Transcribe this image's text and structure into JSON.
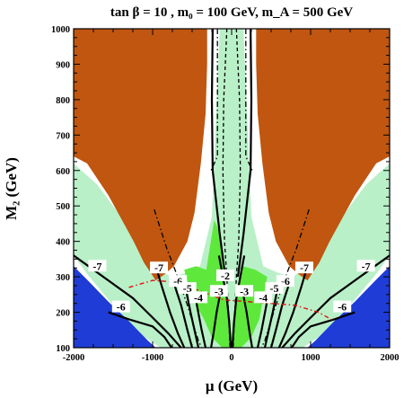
{
  "chart_data": {
    "type": "contour",
    "title": "tan β = 10 ,  m₀ = 100 GeV,  m_A = 500 GeV",
    "xlabel": "μ (GeV)",
    "ylabel": "M₂ (GeV)",
    "xlim": [
      -2000,
      2000
    ],
    "ylim": [
      100,
      1000
    ],
    "xticks": [
      -2000,
      -1000,
      0,
      1000,
      2000
    ],
    "yticks": [
      100,
      200,
      300,
      400,
      500,
      600,
      700,
      800,
      900,
      1000
    ],
    "colors": {
      "excluded_brown": "#c0560f",
      "excluded_blue": "#1f3cd6",
      "relic_light_green": "#b9f0c8",
      "relic_bright_green": "#5ee83c",
      "red_dotted": "#e01010"
    },
    "regions": [
      {
        "color": "brown",
        "polygon": [
          [
            -2000,
            1000
          ],
          [
            -310,
            1000
          ],
          [
            -310,
            900
          ],
          [
            -330,
            760
          ],
          [
            -390,
            620
          ],
          [
            -470,
            480
          ],
          [
            -560,
            400
          ],
          [
            -730,
            330
          ],
          [
            -860,
            305
          ],
          [
            -960,
            290
          ],
          [
            -1110,
            340
          ],
          [
            -1240,
            400
          ],
          [
            -1560,
            530
          ],
          [
            -1830,
            620
          ],
          [
            -2000,
            640
          ]
        ]
      },
      {
        "color": "brown",
        "polygon": [
          [
            2000,
            1000
          ],
          [
            310,
            1000
          ],
          [
            310,
            900
          ],
          [
            330,
            760
          ],
          [
            390,
            620
          ],
          [
            470,
            480
          ],
          [
            560,
            400
          ],
          [
            730,
            330
          ],
          [
            860,
            305
          ],
          [
            960,
            290
          ],
          [
            1110,
            340
          ],
          [
            1240,
            400
          ],
          [
            1560,
            530
          ],
          [
            1830,
            620
          ],
          [
            2000,
            640
          ]
        ]
      },
      {
        "color": "blue",
        "polygon": [
          [
            -2000,
            100
          ],
          [
            -2000,
            330
          ],
          [
            -1820,
            290
          ],
          [
            -1560,
            230
          ],
          [
            -1300,
            175
          ],
          [
            -1060,
            120
          ],
          [
            -960,
            100
          ]
        ]
      },
      {
        "color": "blue",
        "polygon": [
          [
            2000,
            100
          ],
          [
            2000,
            330
          ],
          [
            1820,
            290
          ],
          [
            1560,
            230
          ],
          [
            1300,
            175
          ],
          [
            1060,
            120
          ],
          [
            960,
            100
          ]
        ]
      }
    ],
    "contours": [
      {
        "label": "-7",
        "style": "solid",
        "points": [
          [
            -2000,
            360
          ],
          [
            -1750,
            320
          ],
          [
            -1500,
            280
          ],
          [
            -1250,
            240
          ],
          [
            -1000,
            185
          ],
          [
            -800,
            140
          ],
          [
            -640,
            100
          ]
        ],
        "label_at": [
          -1700,
          325
        ]
      },
      {
        "label": "-7",
        "style": "solid",
        "points": [
          [
            2000,
            360
          ],
          [
            1750,
            320
          ],
          [
            1500,
            280
          ],
          [
            1250,
            240
          ],
          [
            1000,
            185
          ],
          [
            800,
            140
          ],
          [
            640,
            100
          ]
        ],
        "label_at": [
          1700,
          325
        ]
      },
      {
        "label": "-7",
        "style": "solid",
        "points": [
          [
            -960,
            330
          ],
          [
            -880,
            270
          ],
          [
            -780,
            200
          ],
          [
            -680,
            140
          ],
          [
            -600,
            100
          ]
        ],
        "label_at": [
          -920,
          320
        ]
      },
      {
        "label": "-7",
        "style": "solid",
        "points": [
          [
            960,
            330
          ],
          [
            880,
            270
          ],
          [
            780,
            200
          ],
          [
            680,
            140
          ],
          [
            600,
            100
          ]
        ],
        "label_at": [
          920,
          320
        ]
      },
      {
        "label": "-6",
        "style": "solid",
        "points": [
          [
            -1560,
            200
          ],
          [
            -1300,
            180
          ],
          [
            -1000,
            160
          ],
          [
            -850,
            130
          ],
          [
            -760,
            100
          ]
        ],
        "label_at": [
          -1400,
          210
        ]
      },
      {
        "label": "-6",
        "style": "solid",
        "points": [
          [
            1560,
            200
          ],
          [
            1300,
            180
          ],
          [
            1000,
            160
          ],
          [
            850,
            130
          ],
          [
            760,
            100
          ]
        ],
        "label_at": [
          1400,
          210
        ]
      },
      {
        "label": "-6",
        "style": "solid",
        "points": [
          [
            -720,
            275
          ],
          [
            -640,
            220
          ],
          [
            -560,
            150
          ],
          [
            -500,
            100
          ]
        ],
        "label_at": [
          -680,
          282
        ]
      },
      {
        "label": "-6",
        "style": "solid",
        "points": [
          [
            720,
            275
          ],
          [
            640,
            220
          ],
          [
            560,
            150
          ],
          [
            500,
            100
          ]
        ],
        "label_at": [
          680,
          282
        ]
      },
      {
        "label": "-5",
        "style": "solid",
        "points": [
          [
            -580,
            265
          ],
          [
            -520,
            200
          ],
          [
            -460,
            140
          ],
          [
            -420,
            100
          ]
        ],
        "label_at": [
          -560,
          262
        ]
      },
      {
        "label": "-5",
        "style": "solid",
        "points": [
          [
            580,
            265
          ],
          [
            520,
            200
          ],
          [
            460,
            140
          ],
          [
            420,
            100
          ]
        ],
        "label_at": [
          540,
          262
        ]
      },
      {
        "label": "-4",
        "style": "solid",
        "points": [
          [
            -470,
            280
          ],
          [
            -440,
            220
          ],
          [
            -380,
            150
          ],
          [
            -330,
            100
          ]
        ],
        "label_at": [
          -420,
          236
        ]
      },
      {
        "label": "-4",
        "style": "solid",
        "points": [
          [
            470,
            280
          ],
          [
            440,
            220
          ],
          [
            380,
            150
          ],
          [
            330,
            100
          ]
        ],
        "label_at": [
          400,
          236
        ]
      },
      {
        "label": "-3",
        "style": "solid",
        "points": [
          [
            -130,
            270
          ],
          [
            -190,
            200
          ],
          [
            -230,
            140
          ],
          [
            -260,
            100
          ]
        ],
        "label_at": [
          -160,
          254
        ]
      },
      {
        "label": "-3",
        "style": "solid",
        "points": [
          [
            130,
            270
          ],
          [
            190,
            200
          ],
          [
            230,
            140
          ],
          [
            260,
            100
          ]
        ],
        "label_at": [
          160,
          254
        ]
      },
      {
        "label": "-2",
        "style": "solid",
        "points": [
          [
            -160,
            360
          ],
          [
            -110,
            300
          ],
          [
            -60,
            240
          ],
          [
            -30,
            170
          ],
          [
            -10,
            100
          ]
        ],
        "label_at": [
          -80,
          298
        ]
      },
      {
        "label": "",
        "style": "solid",
        "points": [
          [
            160,
            360
          ],
          [
            110,
            300
          ],
          [
            60,
            240
          ],
          [
            30,
            170
          ],
          [
            10,
            100
          ]
        ],
        "label_at": null
      },
      {
        "label": "",
        "style": "solid",
        "points": [
          [
            -240,
            1000
          ],
          [
            -250,
            800
          ],
          [
            -240,
            600
          ],
          [
            -150,
            420
          ],
          [
            -80,
            300
          ]
        ],
        "label_at": null
      },
      {
        "label": "",
        "style": "solid",
        "points": [
          [
            240,
            1000
          ],
          [
            250,
            800
          ],
          [
            240,
            600
          ],
          [
            150,
            420
          ],
          [
            80,
            300
          ]
        ],
        "label_at": null
      }
    ],
    "dashed_lines": [
      {
        "style": "dash-dot",
        "points": [
          [
            -980,
            490
          ],
          [
            -820,
            380
          ],
          [
            -700,
            310
          ],
          [
            -560,
            220
          ],
          [
            -420,
            120
          ],
          [
            -380,
            100
          ]
        ]
      },
      {
        "style": "dash-dot",
        "points": [
          [
            980,
            490
          ],
          [
            820,
            380
          ],
          [
            700,
            310
          ],
          [
            560,
            220
          ],
          [
            420,
            120
          ],
          [
            380,
            100
          ]
        ]
      },
      {
        "style": "dash-dot",
        "points": [
          [
            -180,
            1000
          ],
          [
            -180,
            640
          ],
          [
            -260,
            600
          ]
        ]
      },
      {
        "style": "dash-dot",
        "points": [
          [
            180,
            1000
          ],
          [
            180,
            640
          ],
          [
            260,
            600
          ]
        ]
      },
      {
        "style": "dash",
        "points": [
          [
            -60,
            1000
          ],
          [
            -100,
            800
          ],
          [
            -110,
            600
          ],
          [
            -90,
            400
          ],
          [
            -60,
            300
          ],
          [
            -20,
            100
          ]
        ]
      },
      {
        "style": "dash",
        "points": [
          [
            60,
            1000
          ],
          [
            100,
            800
          ],
          [
            110,
            600
          ],
          [
            90,
            400
          ],
          [
            60,
            300
          ],
          [
            20,
            100
          ]
        ]
      }
    ],
    "red_dotted_line": [
      [
        -1300,
        270
      ],
      [
        -1000,
        290
      ],
      [
        -700,
        285
      ],
      [
        -400,
        260
      ],
      [
        -100,
        235
      ],
      [
        200,
        230
      ],
      [
        500,
        225
      ],
      [
        800,
        220
      ],
      [
        1100,
        200
      ],
      [
        1300,
        175
      ]
    ]
  }
}
